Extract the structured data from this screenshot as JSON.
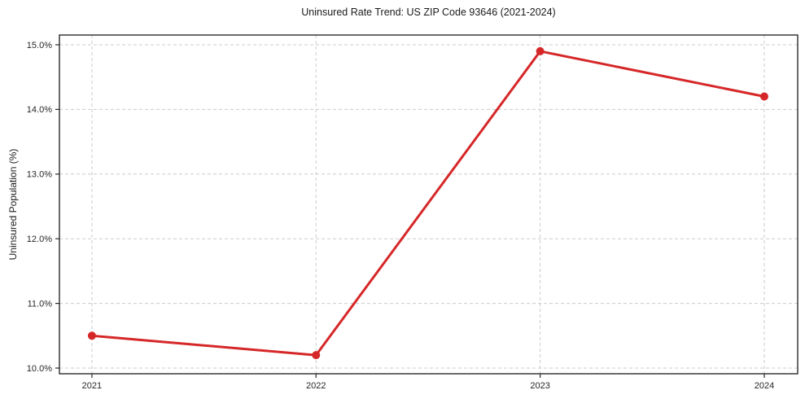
{
  "chart_data": {
    "type": "line",
    "title": "Uninsured Rate Trend: US ZIP Code 93646 (2021-2024)",
    "xlabel": "",
    "ylabel": "Uninsured Population (%)",
    "x": [
      2021,
      2022,
      2023,
      2024
    ],
    "x_tick_labels": [
      "2021",
      "2022",
      "2023",
      "2024"
    ],
    "values": [
      10.5,
      10.2,
      14.9,
      14.2
    ],
    "y_ticks": [
      10.0,
      11.0,
      12.0,
      13.0,
      14.0,
      15.0
    ],
    "y_tick_labels": [
      "10.0%",
      "11.0%",
      "12.0%",
      "13.0%",
      "14.0%",
      "15.0%"
    ],
    "xlim": [
      2020.855,
      2024.149
    ],
    "ylim": [
      9.912,
      15.151
    ],
    "grid": true,
    "legend": "none",
    "line_color": "#d62728",
    "marker_color": "#d62728",
    "grid_color": "#cccccc",
    "axis_color": "#2b2b2b",
    "text_color": "#262626",
    "line_width": 3,
    "marker_radius": 5
  }
}
